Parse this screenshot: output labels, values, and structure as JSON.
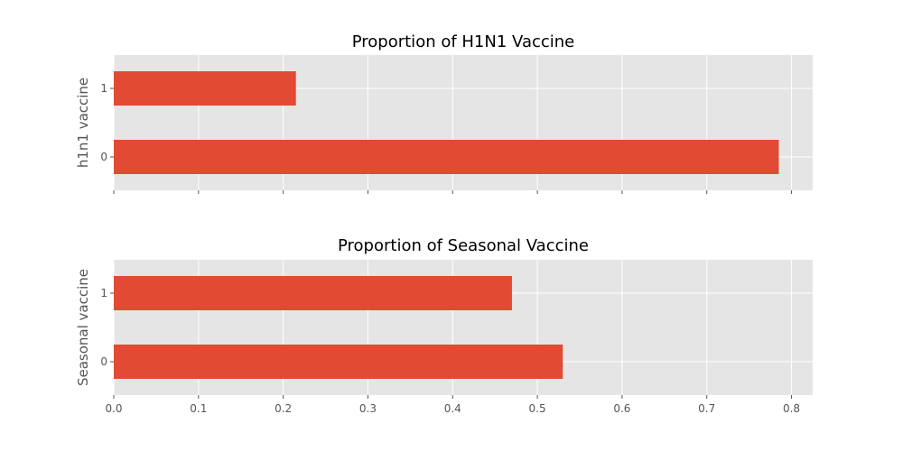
{
  "colors": {
    "background": "#ffffff",
    "plot_background": "#e5e5e5",
    "grid": "#ffffff",
    "bar": "#e24a33",
    "text": "#555555",
    "title": "#000000"
  },
  "chart_data": [
    {
      "type": "bar",
      "orientation": "horizontal",
      "title": "Proportion of H1N1 Vaccine",
      "ylabel": "h1n1 vaccine",
      "xlabel": "",
      "categories": [
        "0",
        "1"
      ],
      "values": [
        0.785,
        0.215
      ],
      "xlim": [
        0,
        0.825
      ],
      "xticks": [
        0.0,
        0.1,
        0.2,
        0.3,
        0.4,
        0.5,
        0.6,
        0.7,
        0.8
      ],
      "xtick_labels_shown": false,
      "grid": true
    },
    {
      "type": "bar",
      "orientation": "horizontal",
      "title": "Proportion of Seasonal Vaccine",
      "ylabel": "Seasonal vaccine",
      "xlabel": "",
      "categories": [
        "0",
        "1"
      ],
      "values": [
        0.53,
        0.47
      ],
      "xlim": [
        0,
        0.825
      ],
      "xticks": [
        0.0,
        0.1,
        0.2,
        0.3,
        0.4,
        0.5,
        0.6,
        0.7,
        0.8
      ],
      "xtick_labels": [
        "0.0",
        "0.1",
        "0.2",
        "0.3",
        "0.4",
        "0.5",
        "0.6",
        "0.7",
        "0.8"
      ],
      "xtick_labels_shown": true,
      "grid": true
    }
  ]
}
